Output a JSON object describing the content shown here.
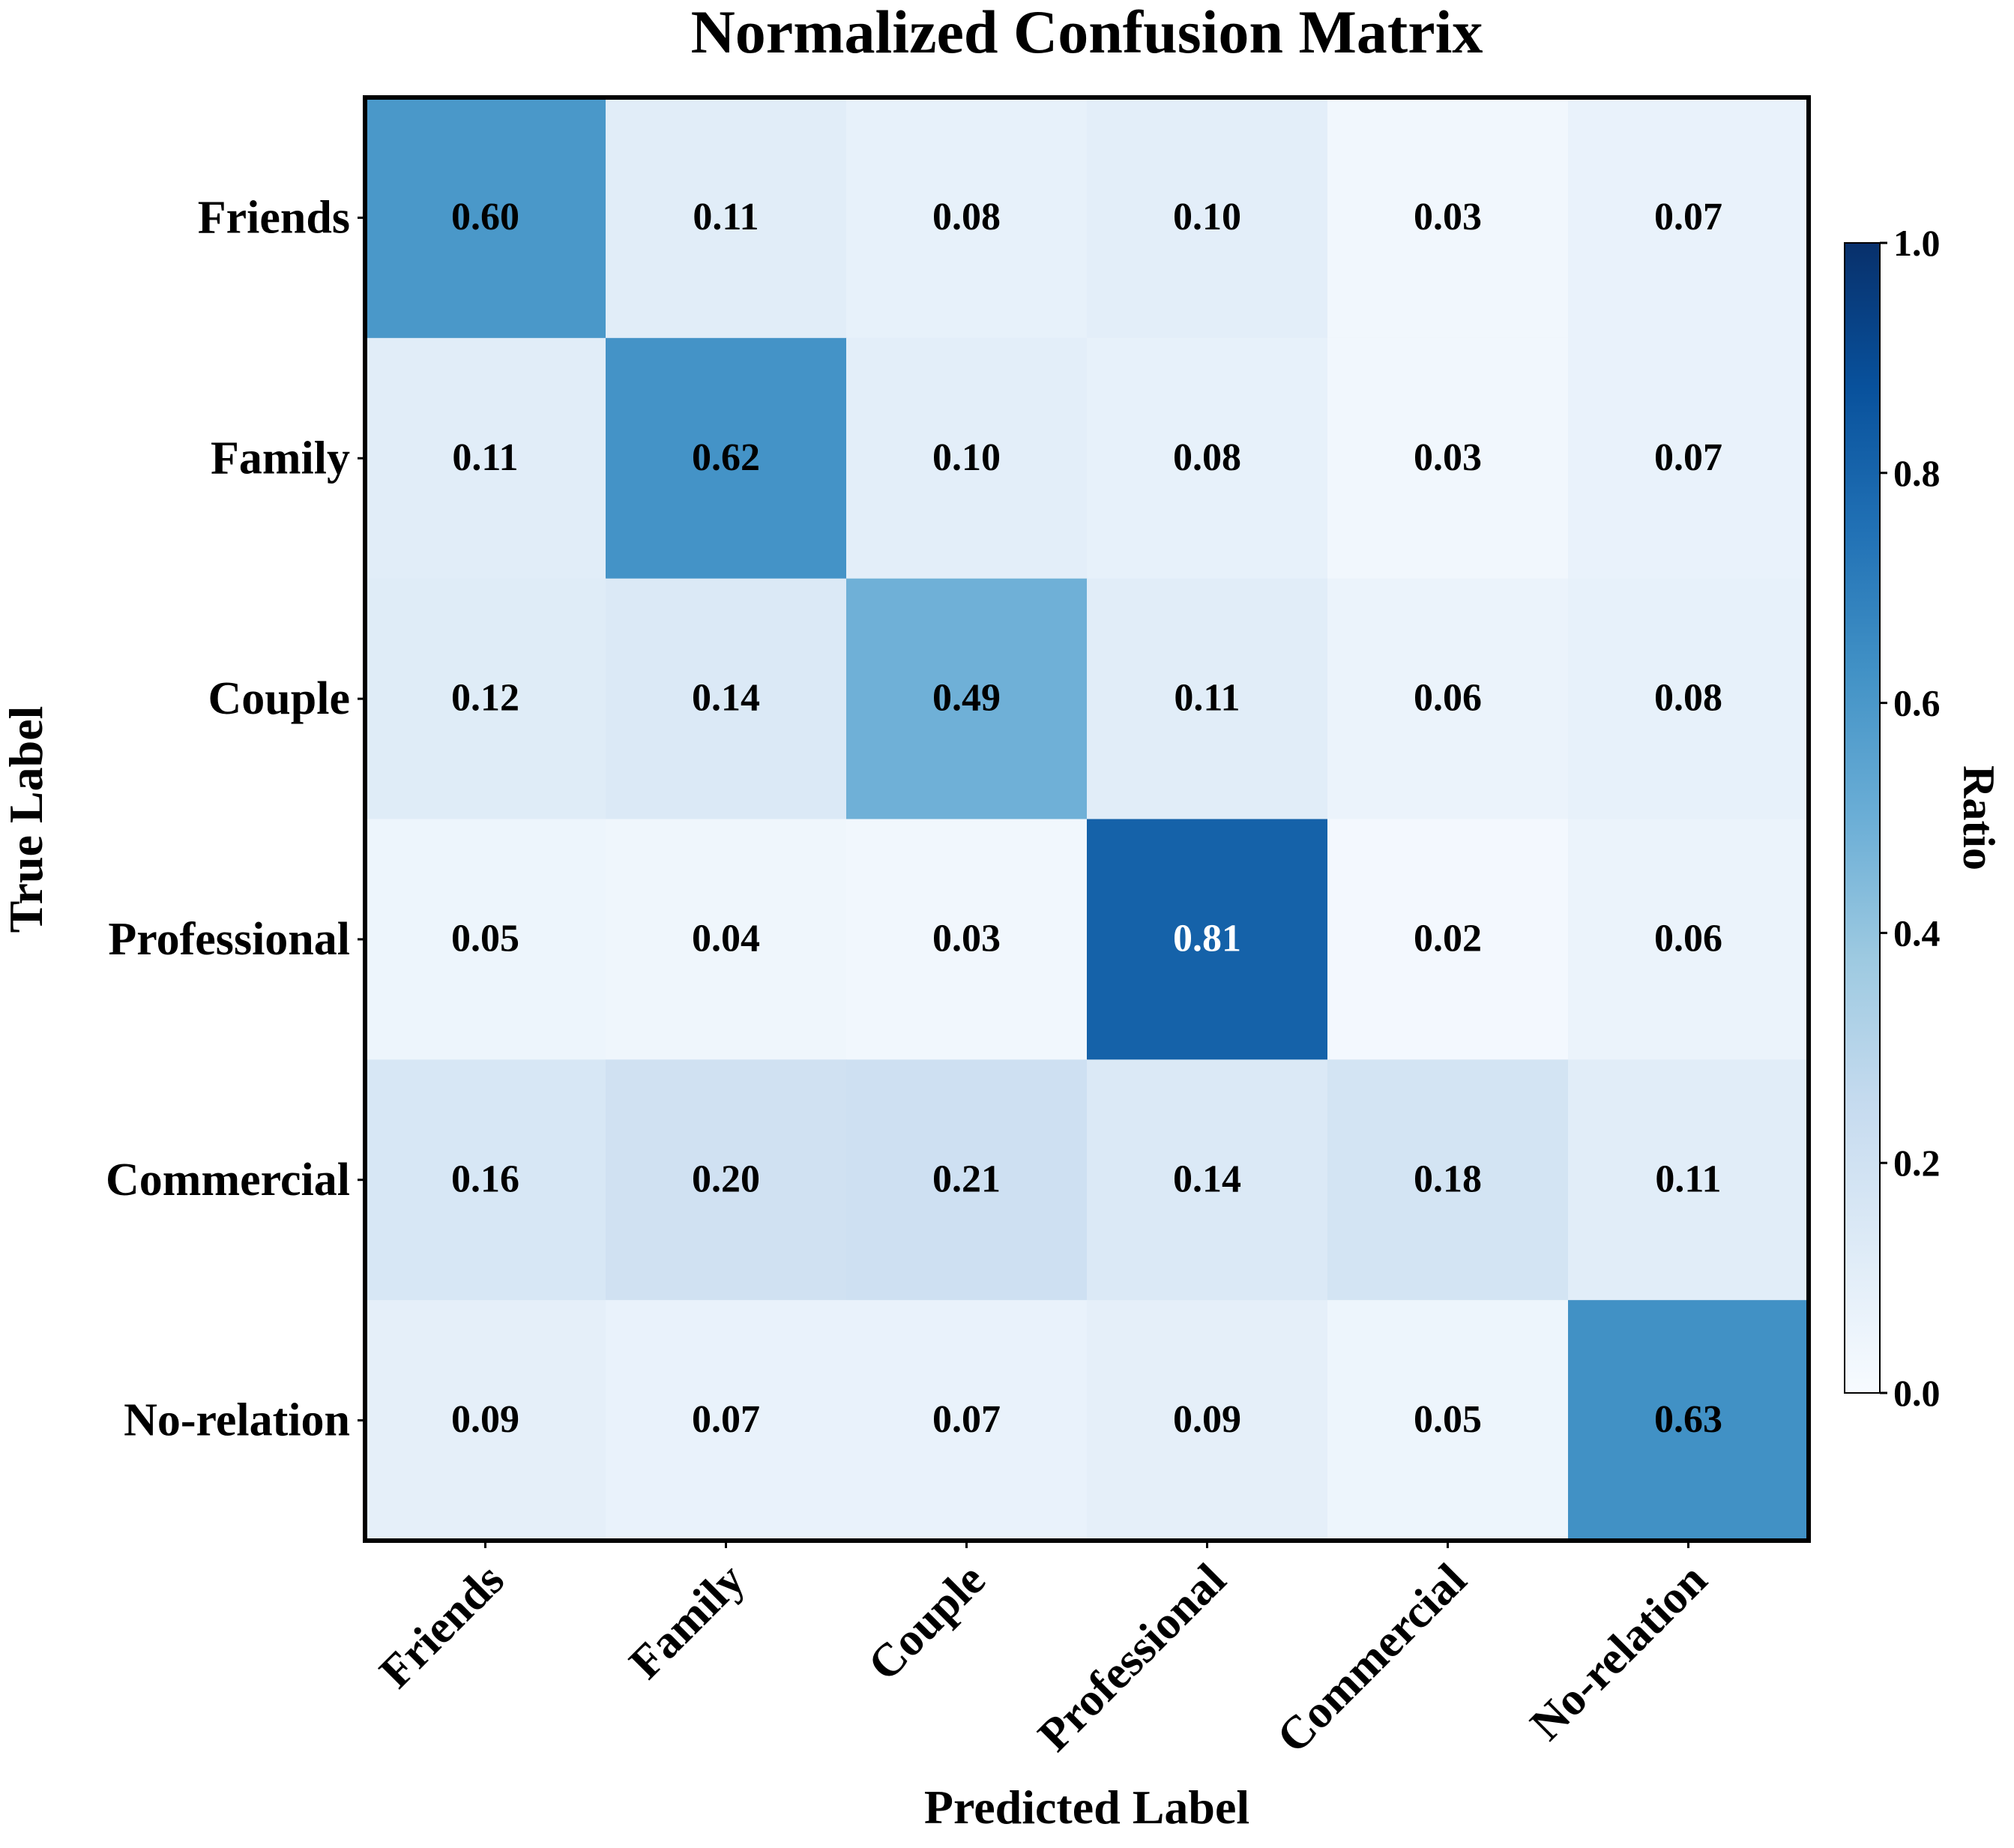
{
  "chart_data": {
    "type": "heatmap",
    "title": "Normalized Confusion Matrix",
    "xlabel": "Predicted Label",
    "ylabel": "True Label",
    "x_categories": [
      "Friends",
      "Family",
      "Couple",
      "Professional",
      "Commercial",
      "No-relation"
    ],
    "y_categories": [
      "Friends",
      "Family",
      "Couple",
      "Professional",
      "Commercial",
      "No-relation"
    ],
    "values": [
      [
        0.6,
        0.11,
        0.08,
        0.1,
        0.03,
        0.07
      ],
      [
        0.11,
        0.62,
        0.1,
        0.08,
        0.03,
        0.07
      ],
      [
        0.12,
        0.14,
        0.49,
        0.11,
        0.06,
        0.08
      ],
      [
        0.05,
        0.04,
        0.03,
        0.81,
        0.02,
        0.06
      ],
      [
        0.16,
        0.2,
        0.21,
        0.14,
        0.18,
        0.11
      ],
      [
        0.09,
        0.07,
        0.07,
        0.09,
        0.05,
        0.63
      ]
    ],
    "colormap": "Blues",
    "colorbar": {
      "label": "Ratio",
      "range": [
        0.0,
        1.0
      ],
      "ticks": [
        "0.0",
        "0.2",
        "0.4",
        "0.6",
        "0.8",
        "1.0"
      ]
    }
  },
  "colors": {
    "text_dark": "#000000",
    "text_light": "#ffffff"
  }
}
